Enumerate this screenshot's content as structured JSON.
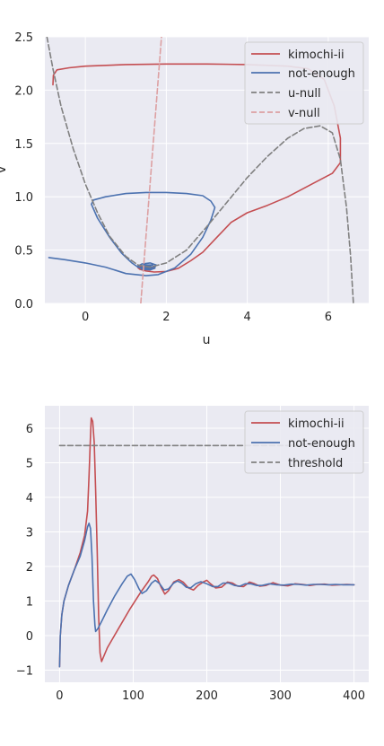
{
  "colors": {
    "bg": "#eaeaf2",
    "grid": "#ffffff",
    "red": "#c44e52",
    "blue": "#4c72b0",
    "gray": "#808080",
    "pink": "#dda0a2"
  },
  "chart_data": [
    {
      "type": "line",
      "xlabel": "u",
      "ylabel": "v",
      "xlim": [
        -1,
        7
      ],
      "ylim": [
        0,
        2.5
      ],
      "xticks": [
        "0",
        "2",
        "4",
        "6"
      ],
      "yticks": [
        "0.0",
        "0.5",
        "1.0",
        "1.5",
        "2.0",
        "2.5"
      ],
      "grid": true,
      "legend": "top-right",
      "series": [
        {
          "name": "kimochi-ii",
          "color": "red",
          "style": "solid",
          "points": [
            [
              -0.8,
              2.05
            ],
            [
              -0.79,
              2.14
            ],
            [
              -0.7,
              2.19
            ],
            [
              -0.4,
              2.21
            ],
            [
              0,
              2.225
            ],
            [
              1,
              2.24
            ],
            [
              2,
              2.245
            ],
            [
              3,
              2.245
            ],
            [
              4,
              2.24
            ],
            [
              5,
              2.225
            ],
            [
              5.5,
              2.2
            ],
            [
              5.9,
              2.1
            ],
            [
              6.15,
              1.85
            ],
            [
              6.3,
              1.55
            ],
            [
              6.3,
              1.32
            ],
            [
              6.1,
              1.22
            ],
            [
              5.6,
              1.12
            ],
            [
              5.0,
              1.0
            ],
            [
              4.5,
              0.92
            ],
            [
              4.0,
              0.85
            ],
            [
              3.6,
              0.76
            ],
            [
              3.2,
              0.6
            ],
            [
              2.9,
              0.48
            ],
            [
              2.6,
              0.4
            ],
            [
              2.3,
              0.33
            ],
            [
              2.0,
              0.3
            ],
            [
              1.7,
              0.295
            ],
            [
              1.5,
              0.305
            ],
            [
              1.35,
              0.32
            ],
            [
              1.3,
              0.335
            ],
            [
              1.4,
              0.35
            ],
            [
              1.6,
              0.345
            ],
            [
              1.7,
              0.33
            ],
            [
              1.6,
              0.32
            ],
            [
              1.45,
              0.33
            ],
            [
              1.5,
              0.34
            ],
            [
              1.6,
              0.335
            ],
            [
              1.55,
              0.33
            ],
            [
              1.5,
              0.335
            ]
          ]
        },
        {
          "name": "not-enough",
          "color": "blue",
          "style": "solid",
          "points": [
            [
              -0.9,
              0.43
            ],
            [
              -0.5,
              0.41
            ],
            [
              0,
              0.38
            ],
            [
              0.5,
              0.34
            ],
            [
              1.0,
              0.28
            ],
            [
              1.5,
              0.26
            ],
            [
              1.8,
              0.27
            ],
            [
              2.2,
              0.33
            ],
            [
              2.6,
              0.46
            ],
            [
              2.9,
              0.62
            ],
            [
              3.1,
              0.78
            ],
            [
              3.2,
              0.9
            ],
            [
              3.1,
              0.96
            ],
            [
              2.9,
              1.01
            ],
            [
              2.5,
              1.03
            ],
            [
              2.0,
              1.04
            ],
            [
              1.5,
              1.04
            ],
            [
              1.0,
              1.03
            ],
            [
              0.5,
              1.0
            ],
            [
              0.2,
              0.97
            ],
            [
              0.15,
              0.93
            ],
            [
              0.3,
              0.8
            ],
            [
              0.6,
              0.62
            ],
            [
              0.9,
              0.47
            ],
            [
              1.15,
              0.38
            ],
            [
              1.3,
              0.34
            ],
            [
              1.5,
              0.32
            ],
            [
              1.7,
              0.33
            ],
            [
              1.75,
              0.36
            ],
            [
              1.6,
              0.38
            ],
            [
              1.4,
              0.37
            ],
            [
              1.3,
              0.35
            ],
            [
              1.4,
              0.32
            ],
            [
              1.6,
              0.315
            ],
            [
              1.72,
              0.33
            ],
            [
              1.65,
              0.36
            ],
            [
              1.45,
              0.36
            ],
            [
              1.38,
              0.34
            ],
            [
              1.5,
              0.325
            ],
            [
              1.65,
              0.335
            ],
            [
              1.6,
              0.355
            ],
            [
              1.48,
              0.35
            ],
            [
              1.47,
              0.335
            ],
            [
              1.56,
              0.33
            ],
            [
              1.6,
              0.34
            ],
            [
              1.53,
              0.35
            ],
            [
              1.5,
              0.34
            ]
          ]
        },
        {
          "name": "u-null",
          "color": "gray",
          "style": "dashed",
          "points": [
            [
              -0.95,
              2.5
            ],
            [
              -0.8,
              2.2
            ],
            [
              -0.6,
              1.85
            ],
            [
              -0.3,
              1.45
            ],
            [
              0,
              1.12
            ],
            [
              0.3,
              0.85
            ],
            [
              0.6,
              0.63
            ],
            [
              1.0,
              0.44
            ],
            [
              1.3,
              0.36
            ],
            [
              1.6,
              0.34
            ],
            [
              2.0,
              0.38
            ],
            [
              2.5,
              0.5
            ],
            [
              3.0,
              0.72
            ],
            [
              3.5,
              0.95
            ],
            [
              4.0,
              1.18
            ],
            [
              4.5,
              1.38
            ],
            [
              5.0,
              1.55
            ],
            [
              5.4,
              1.64
            ],
            [
              5.8,
              1.665
            ],
            [
              6.1,
              1.6
            ],
            [
              6.3,
              1.35
            ],
            [
              6.45,
              0.9
            ],
            [
              6.55,
              0.45
            ],
            [
              6.62,
              0.0
            ]
          ]
        },
        {
          "name": "v-null",
          "color": "pink",
          "style": "dashed",
          "points": [
            [
              1.37,
              0.0
            ],
            [
              1.88,
              2.5
            ]
          ]
        }
      ]
    },
    {
      "type": "line",
      "xlabel": "",
      "ylabel": "",
      "xlim": [
        -20,
        420
      ],
      "ylim": [
        -1.35,
        6.65
      ],
      "xticks": [
        "0",
        "100",
        "200",
        "300",
        "400"
      ],
      "yticks": [
        "−1",
        "0",
        "1",
        "2",
        "3",
        "4",
        "5",
        "6"
      ],
      "grid": true,
      "legend": "top-right",
      "series": [
        {
          "name": "kimochi-ii",
          "color": "red",
          "style": "solid",
          "points": [
            [
              0,
              -0.9
            ],
            [
              1,
              0
            ],
            [
              3,
              0.6
            ],
            [
              6,
              1.0
            ],
            [
              12,
              1.45
            ],
            [
              20,
              1.9
            ],
            [
              28,
              2.4
            ],
            [
              34,
              2.9
            ],
            [
              38,
              3.6
            ],
            [
              40,
              4.6
            ],
            [
              42,
              5.8
            ],
            [
              43,
              6.3
            ],
            [
              45,
              6.2
            ],
            [
              47,
              5.6
            ],
            [
              49,
              4.2
            ],
            [
              51,
              2.5
            ],
            [
              53,
              0.6
            ],
            [
              55,
              -0.5
            ],
            [
              57,
              -0.75
            ],
            [
              65,
              -0.35
            ],
            [
              80,
              0.2
            ],
            [
              95,
              0.75
            ],
            [
              110,
              1.25
            ],
            [
              120,
              1.55
            ],
            [
              125,
              1.72
            ],
            [
              128,
              1.75
            ],
            [
              133,
              1.65
            ],
            [
              138,
              1.4
            ],
            [
              143,
              1.2
            ],
            [
              148,
              1.3
            ],
            [
              155,
              1.55
            ],
            [
              162,
              1.62
            ],
            [
              168,
              1.55
            ],
            [
              175,
              1.38
            ],
            [
              182,
              1.32
            ],
            [
              188,
              1.45
            ],
            [
              195,
              1.55
            ],
            [
              200,
              1.6
            ],
            [
              205,
              1.5
            ],
            [
              212,
              1.38
            ],
            [
              220,
              1.4
            ],
            [
              228,
              1.55
            ],
            [
              235,
              1.52
            ],
            [
              242,
              1.43
            ],
            [
              250,
              1.42
            ],
            [
              258,
              1.55
            ],
            [
              265,
              1.5
            ],
            [
              272,
              1.43
            ],
            [
              280,
              1.45
            ],
            [
              290,
              1.53
            ],
            [
              300,
              1.46
            ],
            [
              310,
              1.44
            ],
            [
              320,
              1.5
            ],
            [
              330,
              1.48
            ],
            [
              340,
              1.45
            ],
            [
              350,
              1.48
            ],
            [
              360,
              1.49
            ],
            [
              370,
              1.46
            ],
            [
              380,
              1.47
            ],
            [
              390,
              1.48
            ],
            [
              400,
              1.47
            ]
          ]
        },
        {
          "name": "not-enough",
          "color": "blue",
          "style": "solid",
          "points": [
            [
              0,
              -0.9
            ],
            [
              1,
              0
            ],
            [
              3,
              0.6
            ],
            [
              6,
              1.0
            ],
            [
              12,
              1.45
            ],
            [
              20,
              1.9
            ],
            [
              28,
              2.3
            ],
            [
              34,
              2.75
            ],
            [
              38,
              3.15
            ],
            [
              40,
              3.25
            ],
            [
              42,
              3.1
            ],
            [
              44,
              2.3
            ],
            [
              46,
              1.0
            ],
            [
              48,
              0.3
            ],
            [
              49,
              0.12
            ],
            [
              52,
              0.2
            ],
            [
              58,
              0.45
            ],
            [
              65,
              0.75
            ],
            [
              75,
              1.15
            ],
            [
              85,
              1.5
            ],
            [
              92,
              1.72
            ],
            [
              97,
              1.78
            ],
            [
              102,
              1.62
            ],
            [
              108,
              1.35
            ],
            [
              112,
              1.22
            ],
            [
              118,
              1.3
            ],
            [
              125,
              1.52
            ],
            [
              130,
              1.6
            ],
            [
              136,
              1.5
            ],
            [
              142,
              1.32
            ],
            [
              148,
              1.35
            ],
            [
              155,
              1.52
            ],
            [
              160,
              1.58
            ],
            [
              166,
              1.52
            ],
            [
              172,
              1.4
            ],
            [
              178,
              1.38
            ],
            [
              185,
              1.5
            ],
            [
              192,
              1.56
            ],
            [
              200,
              1.5
            ],
            [
              208,
              1.42
            ],
            [
              215,
              1.42
            ],
            [
              222,
              1.52
            ],
            [
              230,
              1.52
            ],
            [
              238,
              1.45
            ],
            [
              245,
              1.43
            ],
            [
              252,
              1.5
            ],
            [
              260,
              1.5
            ],
            [
              268,
              1.45
            ],
            [
              275,
              1.45
            ],
            [
              285,
              1.5
            ],
            [
              295,
              1.47
            ],
            [
              305,
              1.46
            ],
            [
              315,
              1.49
            ],
            [
              325,
              1.48
            ],
            [
              335,
              1.46
            ],
            [
              345,
              1.48
            ],
            [
              355,
              1.48
            ],
            [
              365,
              1.47
            ],
            [
              375,
              1.48
            ],
            [
              385,
              1.47
            ],
            [
              400,
              1.47
            ]
          ]
        },
        {
          "name": "threshold",
          "color": "gray",
          "style": "dashed",
          "points": [
            [
              0,
              5.5
            ],
            [
              400,
              5.5
            ]
          ]
        }
      ]
    }
  ]
}
